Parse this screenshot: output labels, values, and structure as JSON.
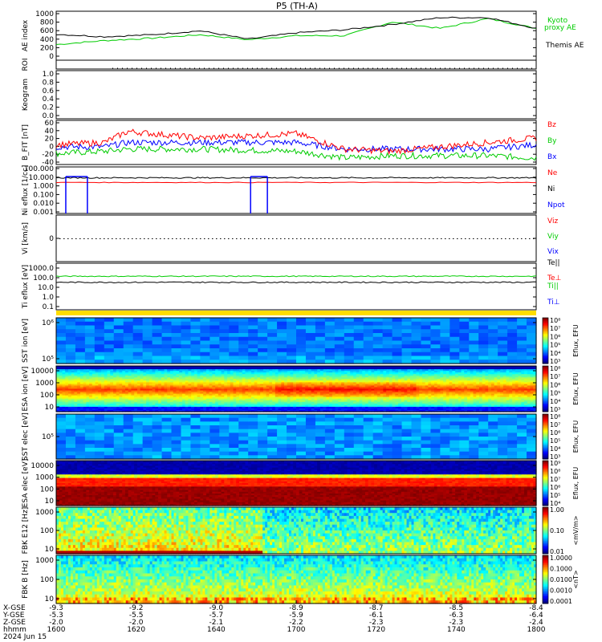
{
  "title": "P5 (TH-A)",
  "footer": {
    "rows": [
      {
        "label": "X-GSE",
        "values": [
          "-9.3",
          "-9.2",
          "-9.0",
          "-8.9",
          "-8.7",
          "-8.5",
          "-8.4"
        ]
      },
      {
        "label": "Y-GSE",
        "values": [
          "-5.3",
          "-5.5",
          "-5.7",
          "-5.9",
          "-6.1",
          "-6.3",
          "-6.4"
        ]
      },
      {
        "label": "Z-GSE",
        "values": [
          "-2.0",
          "-2.0",
          "-2.1",
          "-2.2",
          "-2.3",
          "-2.3",
          "-2.4"
        ]
      },
      {
        "label": "hhmm",
        "values": [
          "1600",
          "1620",
          "1640",
          "1700",
          "1720",
          "1740",
          "1800"
        ]
      }
    ],
    "date": "2024 Jun 15"
  },
  "chart_data": [
    {
      "type": "line",
      "panel": "AE",
      "ylabel": "AE index",
      "yticks": [
        "1000",
        "800",
        "600",
        "400",
        "200",
        "0"
      ],
      "ylim": [
        0,
        1000
      ],
      "x": [
        0,
        0.1,
        0.2,
        0.3,
        0.4,
        0.5,
        0.6,
        0.7,
        0.8,
        0.9,
        1.0
      ],
      "series": [
        {
          "name": "Kyoto proxy AE",
          "color": "#00cc00",
          "values": [
            320,
            400,
            450,
            520,
            420,
            500,
            500,
            780,
            650,
            850,
            650
          ]
        },
        {
          "name": "Themis AE",
          "color": "#000000",
          "values": [
            530,
            480,
            520,
            600,
            430,
            560,
            620,
            730,
            870,
            870,
            650
          ]
        }
      ]
    },
    {
      "type": "line",
      "panel": "ROI",
      "ylabel": "ROI"
    },
    {
      "type": "line",
      "panel": "Keogram",
      "ylabel": "Keogram",
      "yticks": [
        "1.0",
        "0.8",
        "0.6",
        "0.4",
        "0.2",
        "0.0"
      ]
    },
    {
      "type": "line",
      "panel": "B_FIT",
      "ylabel": "B_FIT [nT]",
      "yticks": [
        "60",
        "40",
        "20",
        "0",
        "-20",
        "-40"
      ],
      "ylim": [
        -40,
        60
      ],
      "x": [
        0,
        0.1,
        0.15,
        0.3,
        0.5,
        0.6,
        0.7,
        0.9,
        1.0
      ],
      "series": [
        {
          "name": "Bz",
          "color": "#ff0000",
          "values": [
            5,
            10,
            35,
            20,
            30,
            -5,
            -10,
            10,
            20
          ]
        },
        {
          "name": "By",
          "color": "#00cc00",
          "values": [
            -15,
            -10,
            -5,
            -5,
            -10,
            -25,
            -20,
            -20,
            -25
          ]
        },
        {
          "name": "Bx",
          "color": "#0000ff",
          "values": [
            0,
            0,
            10,
            10,
            10,
            -5,
            -5,
            -5,
            5
          ]
        }
      ]
    },
    {
      "type": "line",
      "panel": "Ni",
      "ylabel": "Ni eflux [1/cc]",
      "yticks": [
        "100.000",
        "10.000",
        "1.000",
        "0.100",
        "0.010",
        "0.001"
      ],
      "series": [
        {
          "name": "Ne",
          "color": "#ff0000"
        },
        {
          "name": "Ni",
          "color": "#000000"
        },
        {
          "name": "Npot",
          "color": "#0000ff"
        }
      ]
    },
    {
      "type": "line",
      "panel": "Vi",
      "ylabel": "Vi [km/s]",
      "yticks": [
        "0"
      ],
      "series": [
        {
          "name": "Viz",
          "color": "#ff0000"
        },
        {
          "name": "Viy",
          "color": "#00cc00"
        },
        {
          "name": "Vix",
          "color": "#0000ff"
        }
      ]
    },
    {
      "type": "line",
      "panel": "Ti",
      "ylabel": "Ti eflux [eV]",
      "yticks": [
        "1000.0",
        "100.0",
        "10.0",
        "1.0",
        "0.1"
      ],
      "series": [
        {
          "name": "Te||",
          "color": "#000000"
        },
        {
          "name": "Te⊥",
          "color": "#ff0000"
        },
        {
          "name": "Ti||",
          "color": "#00cc00"
        },
        {
          "name": "Ti⊥",
          "color": "#0000ff"
        }
      ]
    },
    {
      "type": "heatmap",
      "panel": "SST ion",
      "ylabel": "SST ion [eV]",
      "yticks": [
        "10⁶",
        "10⁵"
      ],
      "colorbar": "Eflux, EFU",
      "cticks": [
        "10⁸",
        "10⁷",
        "10⁶",
        "10⁵",
        "10⁴",
        "10³"
      ]
    },
    {
      "type": "heatmap",
      "panel": "ESA ion",
      "ylabel": "ESA ion [eV]",
      "yticks": [
        "10000",
        "1000",
        "100",
        "10"
      ],
      "colorbar": "Eflux, EFU",
      "cticks": [
        "10⁸",
        "10⁷",
        "10⁶",
        "10⁵",
        "10⁴",
        "10³"
      ]
    },
    {
      "type": "heatmap",
      "panel": "SST elec",
      "ylabel": "SST elec [eV]",
      "yticks": [
        "10⁵"
      ],
      "colorbar": "Eflux, EFU",
      "cticks": [
        "10⁸",
        "10⁷",
        "10⁶",
        "10⁵",
        "10⁴",
        "10³"
      ]
    },
    {
      "type": "heatmap",
      "panel": "ESA elec",
      "ylabel": "ESA elec [eV]",
      "yticks": [
        "10000",
        "1000",
        "100",
        "10"
      ],
      "colorbar": "Eflux, EFU",
      "cticks": [
        "10⁹",
        "10⁸",
        "10⁷",
        "10⁶",
        "10⁵",
        "10⁴"
      ]
    },
    {
      "type": "heatmap",
      "panel": "FBK E",
      "ylabel": "FBK E12 [Hz]",
      "yticks": [
        "1000",
        "100",
        "10"
      ],
      "colorbar": "<mV/m>",
      "cticks": [
        "1.00",
        "0.10",
        "0.01"
      ]
    },
    {
      "type": "heatmap",
      "panel": "FBK B",
      "ylabel": "FBK B [Hz]",
      "yticks": [
        "1000",
        "100",
        "10"
      ],
      "colorbar": "<nT>",
      "cticks": [
        "1.0000",
        "0.1000",
        "0.0100",
        "0.0010",
        "0.0001"
      ]
    }
  ]
}
